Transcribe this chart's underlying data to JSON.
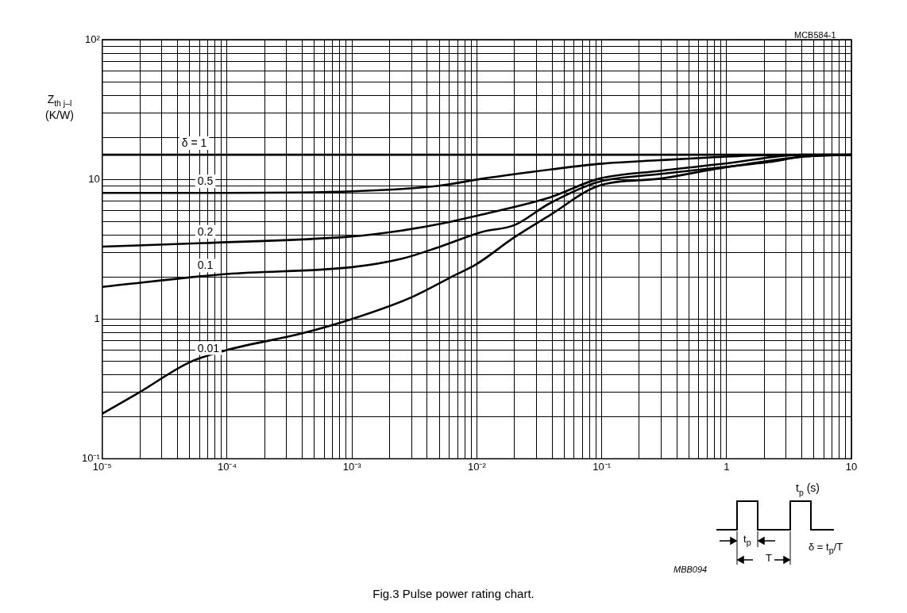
{
  "chart_data": {
    "type": "line",
    "title": "Fig.3 Pulse power rating chart.",
    "xlabel": "t$_{p}$ (s)",
    "ylabel": "Z$_{th j–l}$ (K/W)",
    "log": "xy",
    "grid": true,
    "legend": false,
    "marker": "none",
    "line_style": "solid",
    "xlim": [
      1e-05,
      10
    ],
    "ylim": [
      0.1,
      100
    ],
    "xticks": [
      {
        "value": 1e-05,
        "label": "10⁻⁵"
      },
      {
        "value": 2e-05,
        "label": null
      },
      {
        "value": 3e-05,
        "label": null
      },
      {
        "value": 4e-05,
        "label": null
      },
      {
        "value": 5e-05,
        "label": null
      },
      {
        "value": 6e-05,
        "label": null
      },
      {
        "value": 7e-05,
        "label": null
      },
      {
        "value": 8e-05,
        "label": null
      },
      {
        "value": 9e-05,
        "label": null
      },
      {
        "value": 0.0001,
        "label": "10⁻⁴"
      },
      {
        "value": 0.0002,
        "label": null
      },
      {
        "value": 0.0003,
        "label": null
      },
      {
        "value": 0.0004,
        "label": null
      },
      {
        "value": 0.0005,
        "label": null
      },
      {
        "value": 0.0006,
        "label": null
      },
      {
        "value": 0.0007,
        "label": null
      },
      {
        "value": 0.0008,
        "label": null
      },
      {
        "value": 0.0009,
        "label": null
      },
      {
        "value": 0.001,
        "label": "10⁻³"
      },
      {
        "value": 0.002,
        "label": null
      },
      {
        "value": 0.003,
        "label": null
      },
      {
        "value": 0.004,
        "label": null
      },
      {
        "value": 0.005,
        "label": null
      },
      {
        "value": 0.006,
        "label": null
      },
      {
        "value": 0.007,
        "label": null
      },
      {
        "value": 0.008,
        "label": null
      },
      {
        "value": 0.009,
        "label": null
      },
      {
        "value": 0.01,
        "label": "10⁻²"
      },
      {
        "value": 0.02,
        "label": null
      },
      {
        "value": 0.03,
        "label": null
      },
      {
        "value": 0.04,
        "label": null
      },
      {
        "value": 0.05,
        "label": null
      },
      {
        "value": 0.06,
        "label": null
      },
      {
        "value": 0.07,
        "label": null
      },
      {
        "value": 0.08,
        "label": null
      },
      {
        "value": 0.09,
        "label": null
      },
      {
        "value": 0.1,
        "label": "10⁻¹"
      },
      {
        "value": 0.2,
        "label": null
      },
      {
        "value": 0.3,
        "label": null
      },
      {
        "value": 0.4,
        "label": null
      },
      {
        "value": 0.5,
        "label": null
      },
      {
        "value": 0.6,
        "label": null
      },
      {
        "value": 0.7,
        "label": null
      },
      {
        "value": 0.8,
        "label": null
      },
      {
        "value": 0.9,
        "label": null
      },
      1,
      {
        "value": 2,
        "label": null
      },
      {
        "value": 3,
        "label": null
      },
      {
        "value": 4,
        "label": null
      },
      {
        "value": 5,
        "label": null
      },
      {
        "value": 6,
        "label": null
      },
      {
        "value": 7,
        "label": null
      },
      {
        "value": 8,
        "label": null
      },
      {
        "value": 9,
        "label": null
      },
      10
    ],
    "yticks": [
      {
        "value": 0.1,
        "label": "10⁻¹"
      },
      {
        "value": 0.2,
        "label": null
      },
      {
        "value": 0.3,
        "label": null
      },
      {
        "value": 0.4,
        "label": null
      },
      {
        "value": 0.5,
        "label": null
      },
      {
        "value": 0.6,
        "label": null
      },
      {
        "value": 0.7,
        "label": null
      },
      {
        "value": 0.8,
        "label": null
      },
      {
        "value": 0.9,
        "label": null
      },
      1,
      {
        "value": 2,
        "label": null
      },
      {
        "value": 3,
        "label": null
      },
      {
        "value": 4,
        "label": null
      },
      {
        "value": 5,
        "label": null
      },
      {
        "value": 6,
        "label": null
      },
      {
        "value": 7,
        "label": null
      },
      {
        "value": 8,
        "label": null
      },
      {
        "value": 9,
        "label": null
      },
      10,
      {
        "value": 20,
        "label": null
      },
      {
        "value": 30,
        "label": null
      },
      {
        "value": 40,
        "label": null
      },
      {
        "value": 50,
        "label": null
      },
      {
        "value": 60,
        "label": null
      },
      {
        "value": 70,
        "label": null
      },
      {
        "value": 80,
        "label": null
      },
      {
        "value": 90,
        "label": null
      },
      {
        "value": 100,
        "label": "10²"
      }
    ],
    "series": [
      {
        "name": "δ = 1",
        "color": "#000000",
        "x": [
          1e-05,
          10
        ],
        "values": [
          15,
          15
        ]
      },
      {
        "name": "0.5",
        "color": "#000000",
        "x": [
          1e-05,
          0.0001,
          0.001,
          0.005,
          0.011,
          0.04,
          0.095,
          0.29,
          0.8,
          2,
          10
        ],
        "values": [
          8,
          8,
          8.2,
          9,
          10.1,
          11.8,
          12.9,
          13.7,
          14.4,
          14.9,
          15
        ]
      },
      {
        "name": "0.2",
        "color": "#000000",
        "x": [
          1e-05,
          6.6e-05,
          0.001,
          0.0025,
          0.0051,
          0.011,
          0.038,
          0.095,
          0.29,
          1,
          4,
          10
        ],
        "values": [
          3.3,
          3.5,
          3.9,
          4.3,
          4.8,
          5.6,
          7.4,
          10.1,
          11.5,
          13,
          15,
          15
        ]
      },
      {
        "name": "0.1",
        "color": "#000000",
        "x": [
          1e-05,
          0.0001,
          0.001,
          0.0025,
          0.0051,
          0.011,
          0.02,
          0.038,
          0.095,
          0.29,
          1,
          2.2,
          4,
          10
        ],
        "values": [
          1.7,
          2.1,
          2.35,
          2.7,
          3.3,
          4.2,
          4.7,
          6.7,
          9.6,
          10.9,
          12.3,
          13.3,
          14.5,
          15
        ]
      },
      {
        "name": "0.01",
        "color": "#000000",
        "x": [
          1e-05,
          2e-05,
          5e-05,
          0.0001,
          0.0004,
          0.001,
          0.003,
          0.0066,
          0.0098,
          0.02,
          0.038,
          0.095,
          0.29,
          0.79,
          4,
          10
        ],
        "values": [
          0.21,
          0.3,
          0.49,
          0.6,
          0.79,
          1,
          1.43,
          2.05,
          2.45,
          3.85,
          5.5,
          9,
          10.1,
          11.8,
          14.5,
          15
        ]
      }
    ],
    "annotations": [
      "MCB584-1",
      "MBB094",
      "t$_{p}$",
      "T",
      "δ = t$_{p}$/T"
    ]
  }
}
